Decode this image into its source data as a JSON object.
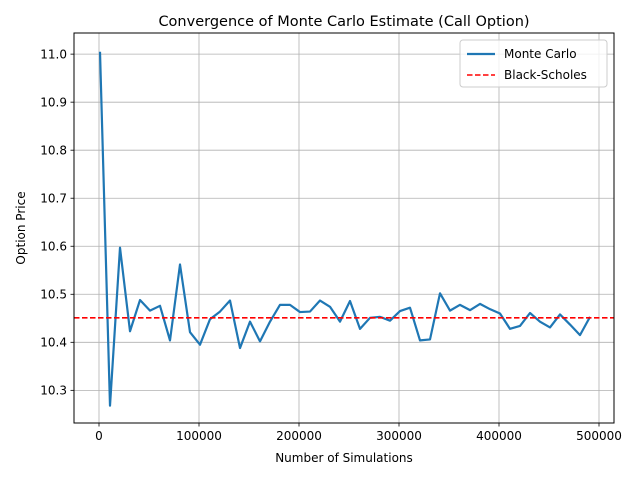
{
  "chart_data": {
    "type": "line",
    "title": "Convergence of Monte Carlo Estimate (Call Option)",
    "xlabel": "Number of Simulations",
    "ylabel": "Option Price",
    "xlim": [
      -25000,
      515000
    ],
    "ylim": [
      10.232,
      11.044
    ],
    "xticks": [
      0,
      100000,
      200000,
      300000,
      400000,
      500000
    ],
    "yticks": [
      10.3,
      10.4,
      10.5,
      10.6,
      10.7,
      10.8,
      10.9,
      11.0
    ],
    "xtick_labels": [
      "0",
      "100000",
      "200000",
      "300000",
      "400000",
      "500000"
    ],
    "ytick_labels": [
      "10.3",
      "10.4",
      "10.5",
      "10.6",
      "10.7",
      "10.8",
      "10.9",
      "11.0"
    ],
    "grid": true,
    "legend_position": "top-right",
    "series": [
      {
        "name": "Monte Carlo",
        "style": "solid",
        "color": "#1f77b4",
        "x": [
          1000,
          11000,
          21000,
          31000,
          41000,
          51000,
          61000,
          71000,
          81000,
          91000,
          101000,
          111000,
          121000,
          131000,
          141000,
          151000,
          161000,
          171000,
          181000,
          191000,
          201000,
          211000,
          221000,
          231000,
          241000,
          251000,
          261000,
          271000,
          281000,
          291000,
          301000,
          311000,
          321000,
          331000,
          341000,
          351000,
          361000,
          371000,
          381000,
          391000,
          401000,
          411000,
          421000,
          431000,
          441000,
          451000,
          461000,
          471000,
          481000,
          491000
        ],
        "y": [
          11.005,
          10.268,
          10.597,
          10.423,
          10.488,
          10.466,
          10.476,
          10.404,
          10.562,
          10.421,
          10.395,
          10.448,
          10.464,
          10.487,
          10.388,
          10.443,
          10.402,
          10.443,
          10.478,
          10.478,
          10.463,
          10.464,
          10.487,
          10.474,
          10.443,
          10.486,
          10.428,
          10.451,
          10.453,
          10.445,
          10.465,
          10.472,
          10.404,
          10.406,
          10.502,
          10.466,
          10.478,
          10.467,
          10.48,
          10.469,
          10.46,
          10.428,
          10.434,
          10.461,
          10.443,
          10.431,
          10.458,
          10.437,
          10.415,
          10.453
        ]
      },
      {
        "name": "Black-Scholes",
        "style": "dashed",
        "color": "#ff0000",
        "value": 10.451
      }
    ]
  }
}
